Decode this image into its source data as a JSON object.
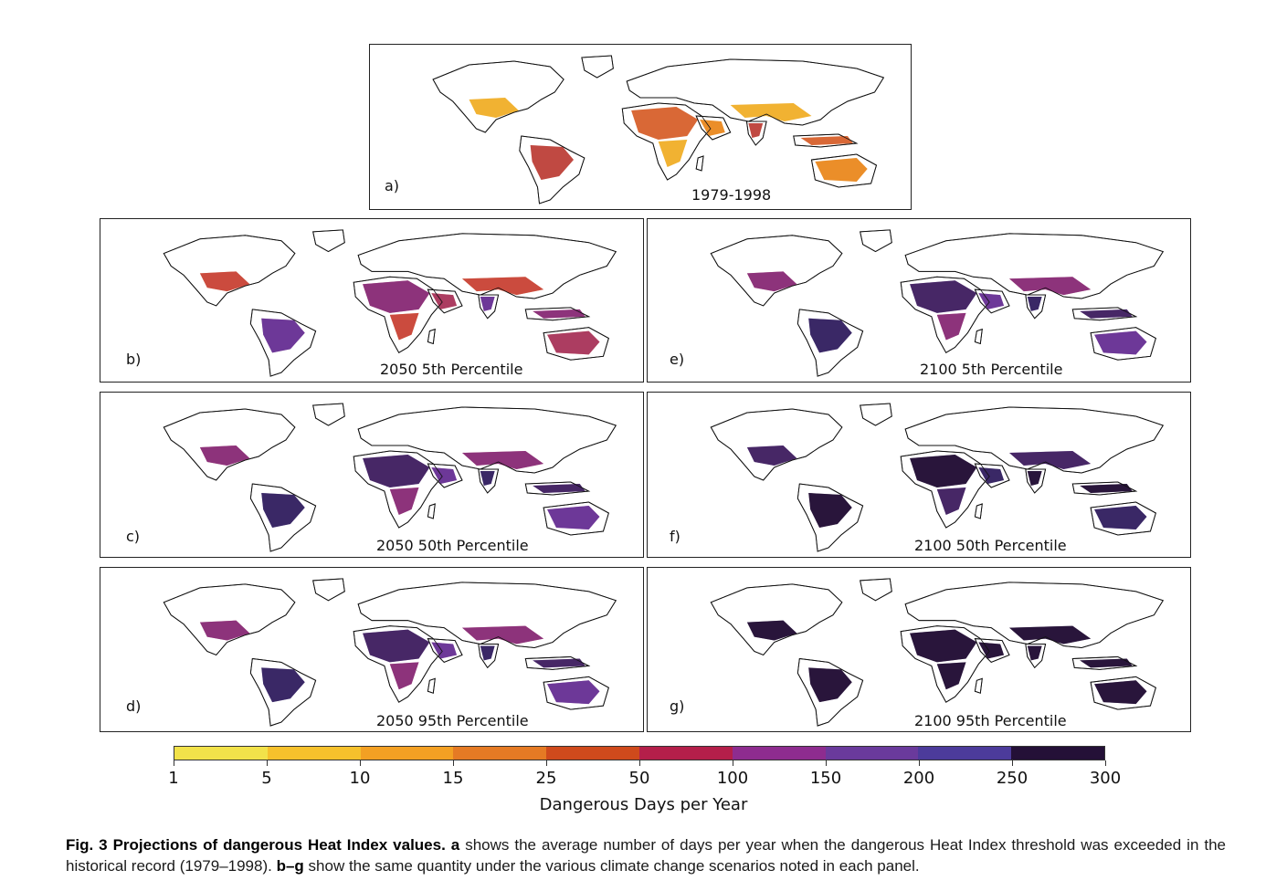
{
  "panels": [
    {
      "id": "a",
      "letter": "a)",
      "title": "1979-1998",
      "intensity": 0
    },
    {
      "id": "b",
      "letter": "b)",
      "title": "2050 5th Percentile",
      "intensity": 1
    },
    {
      "id": "e",
      "letter": "e)",
      "title": "2100 5th Percentile",
      "intensity": 2
    },
    {
      "id": "c",
      "letter": "c)",
      "title": "2050 50th Percentile",
      "intensity": 2
    },
    {
      "id": "f",
      "letter": "f)",
      "title": "2100 50th Percentile",
      "intensity": 3
    },
    {
      "id": "d",
      "letter": "d)",
      "title": "2050 95th Percentile",
      "intensity": 2
    },
    {
      "id": "g",
      "letter": "g)",
      "title": "2100 95th Percentile",
      "intensity": 4
    }
  ],
  "colorbar": {
    "label": "Dangerous Days per Year",
    "ticks": [
      "1",
      "5",
      "10",
      "15",
      "25",
      "50",
      "100",
      "150",
      "200",
      "250",
      "300"
    ],
    "colors": [
      "#f2e24a",
      "#f6c12c",
      "#f3a023",
      "#e57a24",
      "#cf4a1c",
      "#b41f4a",
      "#8e2c8f",
      "#6a3a9c",
      "#4c3b9b",
      "#241037"
    ]
  },
  "caption": {
    "fig_label": "Fig. 3 Projections of dangerous Heat Index values.",
    "a_label": "a",
    "a_text": " shows the average number of days per year when the dangerous Heat Index threshold was exceeded in the historical record (1979–1998). ",
    "bg_label": "b–g",
    "bg_text": " show the same quantity under the various climate change scenarios noted in each panel."
  }
}
